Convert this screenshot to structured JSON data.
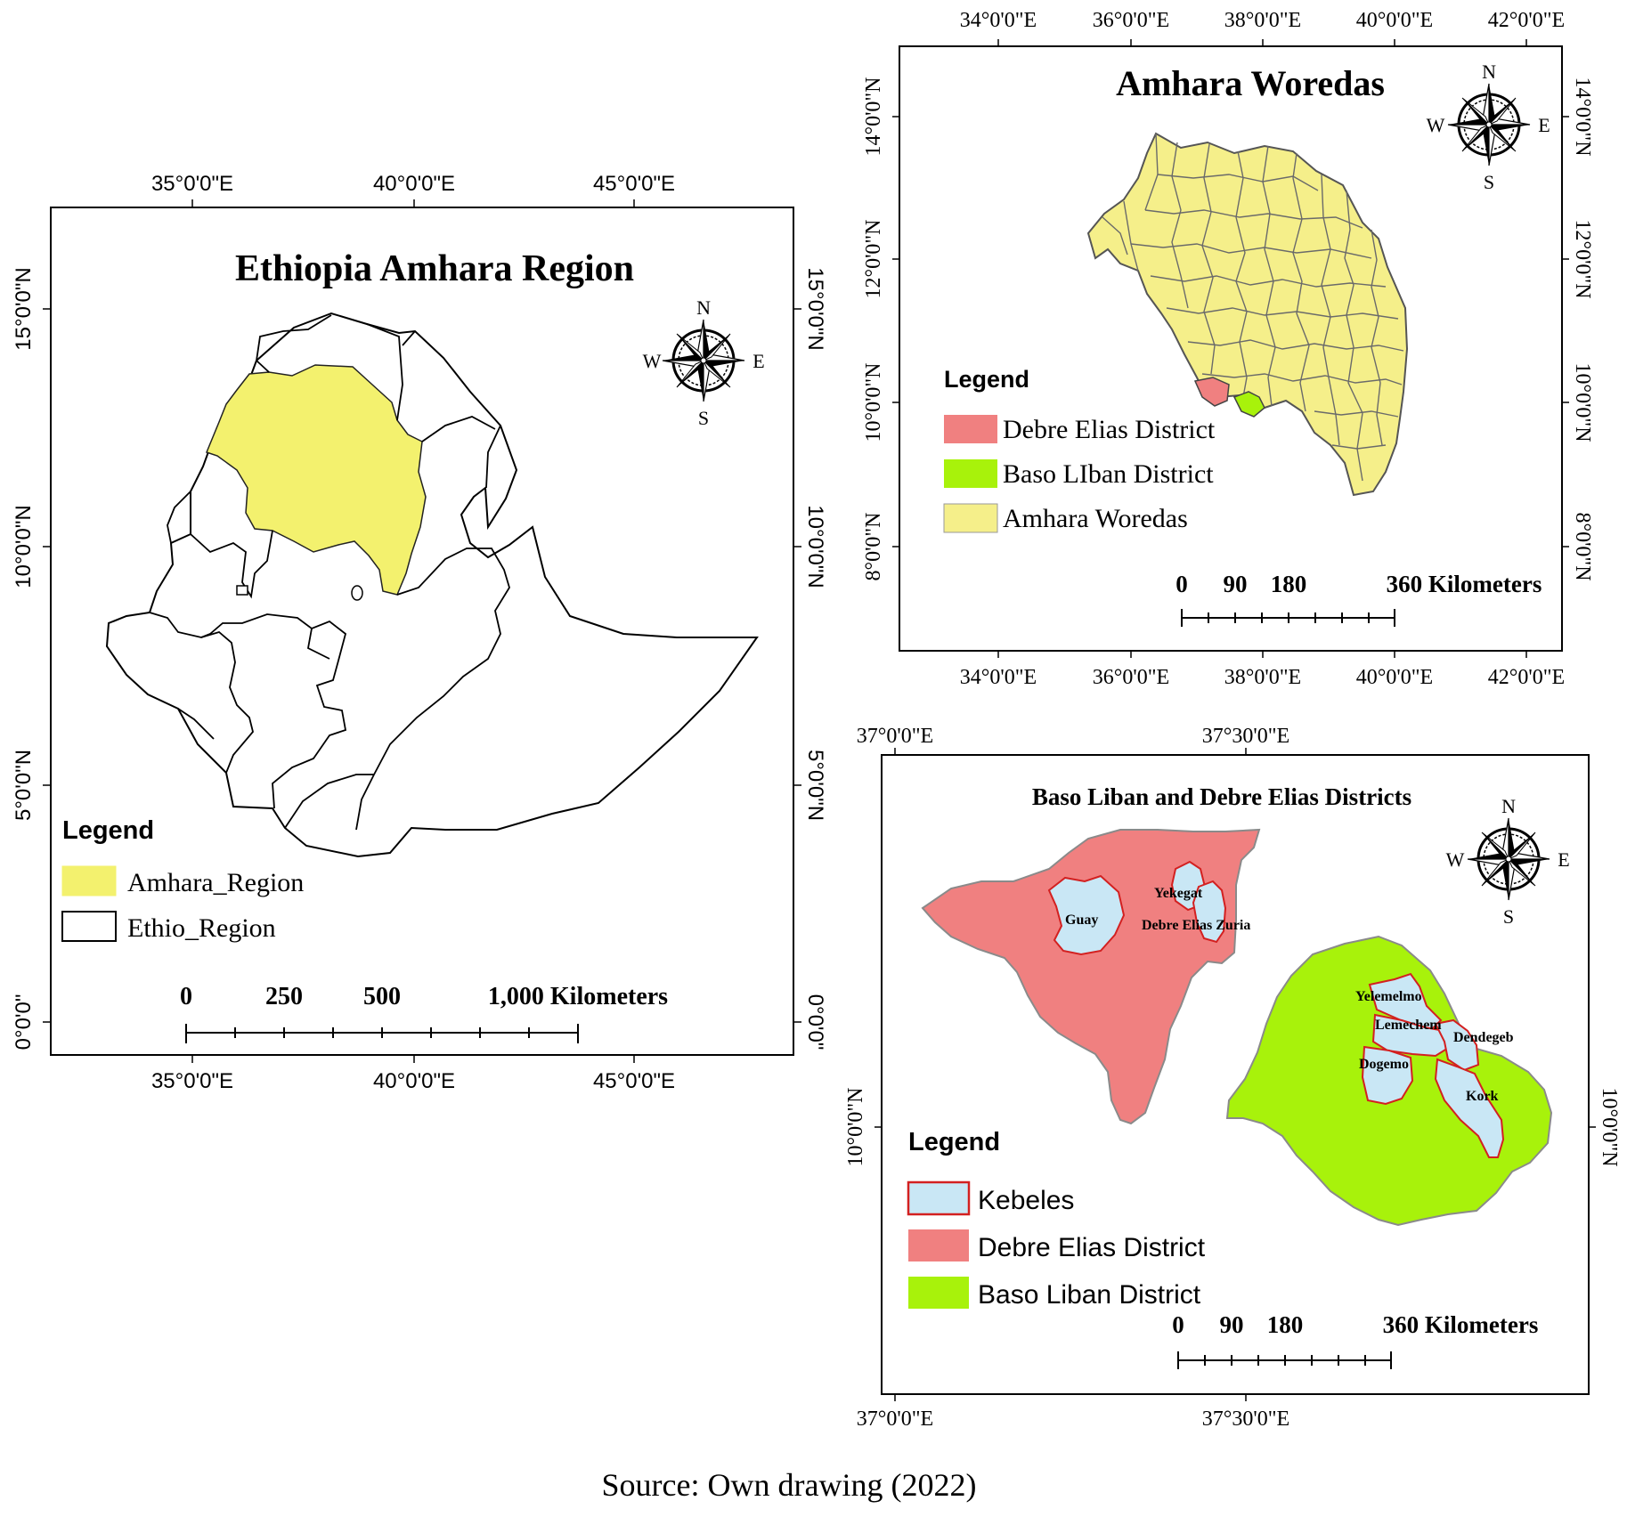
{
  "caption": "Source: Own drawing (2022)",
  "colors": {
    "amhara_yellow": "#F3F16E",
    "debre_elias": "#F08080",
    "baso_liban": "#A8F20B",
    "kebele": "#C9E7F5",
    "kebele_border": "#D32020",
    "woreda_yellow": "#F5EF8A"
  },
  "map1": {
    "title": "Ethiopia Amhara Region",
    "lon_ticks": [
      "35°0'0\"E",
      "40°0'0\"E",
      "45°0'0\"E"
    ],
    "lat_ticks": [
      "15°0'0\"N",
      "10°0'0\"N",
      "5°0'0\"N",
      "0°0'0\""
    ],
    "compass": {
      "n": "N",
      "s": "S",
      "e": "E",
      "w": "W"
    },
    "legend": {
      "title": "Legend",
      "items": [
        {
          "label": "Amhara_Region",
          "color": "#F3F16E"
        },
        {
          "label": "Ethio_Region",
          "color": "#FFFFFF"
        }
      ]
    },
    "scale": {
      "labels": [
        "0",
        "250",
        "500",
        "1,000 Kilometers"
      ]
    }
  },
  "map2": {
    "title": "Amhara Woredas",
    "lon_ticks": [
      "34°0'0\"E",
      "36°0'0\"E",
      "38°0'0\"E",
      "40°0'0\"E",
      "42°0'0\"E"
    ],
    "lat_ticks": [
      "14°0'0\"N",
      "12°0'0\"N",
      "10°0'0\"N",
      "8°0'0\"N"
    ],
    "compass": {
      "n": "N",
      "s": "S",
      "e": "E",
      "w": "W"
    },
    "legend": {
      "title": "Legend",
      "items": [
        {
          "label": "Debre Elias District",
          "color": "#F08080"
        },
        {
          "label": "Baso LIban District",
          "color": "#A8F20B"
        },
        {
          "label": "Amhara Woredas",
          "color": "#F5EF8A"
        }
      ]
    },
    "scale": {
      "labels": [
        "0",
        "90",
        "180",
        "360 Kilometers"
      ]
    }
  },
  "map3": {
    "title": "Baso Liban and Debre Elias Districts",
    "lon_ticks": [
      "37°0'0\"E",
      "37°30'0\"E"
    ],
    "lat_ticks": [
      "10°0'0\"N"
    ],
    "compass": {
      "n": "N",
      "s": "S",
      "e": "E",
      "w": "W"
    },
    "kebeles": [
      "Guay",
      "Yekegat",
      "Debre Elias Zuria",
      "Yelemelmo",
      "Lemechem",
      "Dendegeb",
      "Dogemo",
      "Kork"
    ],
    "legend": {
      "title": "Legend",
      "items": [
        {
          "label": "Kebeles",
          "color": "#C9E7F5"
        },
        {
          "label": "Debre Elias District",
          "color": "#F08080"
        },
        {
          "label": "Baso Liban District",
          "color": "#A8F20B"
        }
      ]
    },
    "scale": {
      "labels": [
        "0",
        "90",
        "180",
        "360 Kilometers"
      ]
    }
  }
}
